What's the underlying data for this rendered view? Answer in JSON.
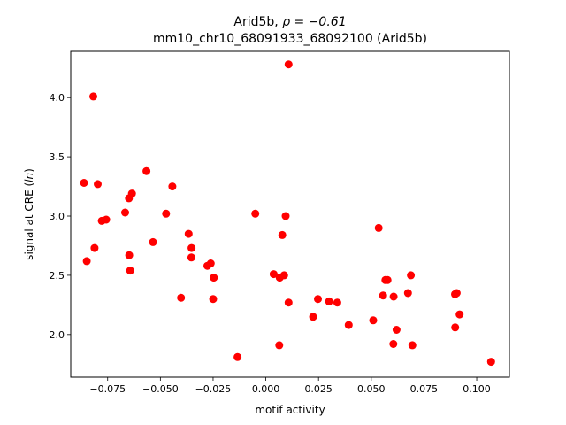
{
  "chart_data": {
    "type": "scatter",
    "title_line1_prefix": "Arid5b, ",
    "title_line1_rho": "ρ = −0.61",
    "title_line2": "mm10_chr10_68091933_68092100 (Arid5b)",
    "xlabel": "motif activity",
    "ylabel_prefix": "signal at CRE (",
    "ylabel_italic": "ln",
    "ylabel_suffix": ")",
    "xlim": [
      -0.0925,
      0.1155
    ],
    "ylim": [
      1.64,
      4.39
    ],
    "xticks": [
      -0.075,
      -0.05,
      -0.025,
      0.0,
      0.025,
      0.05,
      0.075,
      0.1
    ],
    "xtick_labels": [
      "−0.075",
      "−0.050",
      "−0.025",
      "0.000",
      "0.025",
      "0.050",
      "0.075",
      "0.100"
    ],
    "yticks": [
      2.0,
      2.5,
      3.0,
      3.5,
      4.0
    ],
    "ytick_labels": [
      "2.0",
      "2.5",
      "3.0",
      "3.5",
      "4.0"
    ],
    "grid": false,
    "marker_color": "#ff0000",
    "x": [
      0.0108,
      -0.0818,
      -0.0862,
      -0.0797,
      -0.0849,
      -0.0812,
      -0.0778,
      -0.0757,
      -0.0667,
      -0.0648,
      -0.0649,
      -0.0635,
      -0.0643,
      -0.0566,
      -0.0535,
      -0.0473,
      -0.0443,
      -0.0402,
      -0.0366,
      -0.0352,
      -0.0353,
      -0.0277,
      -0.0261,
      -0.0247,
      -0.025,
      -0.0134,
      -0.005,
      0.0094,
      0.0078,
      0.0037,
      0.0066,
      0.0087,
      0.0108,
      0.0064,
      0.0224,
      0.0247,
      0.03,
      0.0339,
      0.0393,
      0.0509,
      0.0535,
      0.0556,
      0.0567,
      0.0577,
      0.0606,
      0.0605,
      0.062,
      0.0674,
      0.0688,
      0.0695,
      0.0897,
      0.0905,
      0.0919,
      0.0898,
      0.1068
    ],
    "y": [
      4.28,
      4.01,
      3.28,
      3.27,
      2.62,
      2.73,
      2.96,
      2.97,
      3.03,
      2.67,
      3.15,
      3.19,
      2.54,
      3.38,
      2.78,
      3.02,
      3.25,
      2.31,
      2.85,
      2.73,
      2.65,
      2.58,
      2.6,
      2.48,
      2.3,
      1.81,
      3.02,
      3.0,
      2.84,
      2.51,
      2.48,
      2.5,
      2.27,
      1.91,
      2.15,
      2.3,
      2.28,
      2.27,
      2.08,
      2.12,
      2.9,
      2.33,
      2.46,
      2.46,
      2.32,
      1.92,
      2.04,
      2.35,
      2.5,
      1.91,
      2.34,
      2.35,
      2.17,
      2.06,
      1.77
    ]
  }
}
